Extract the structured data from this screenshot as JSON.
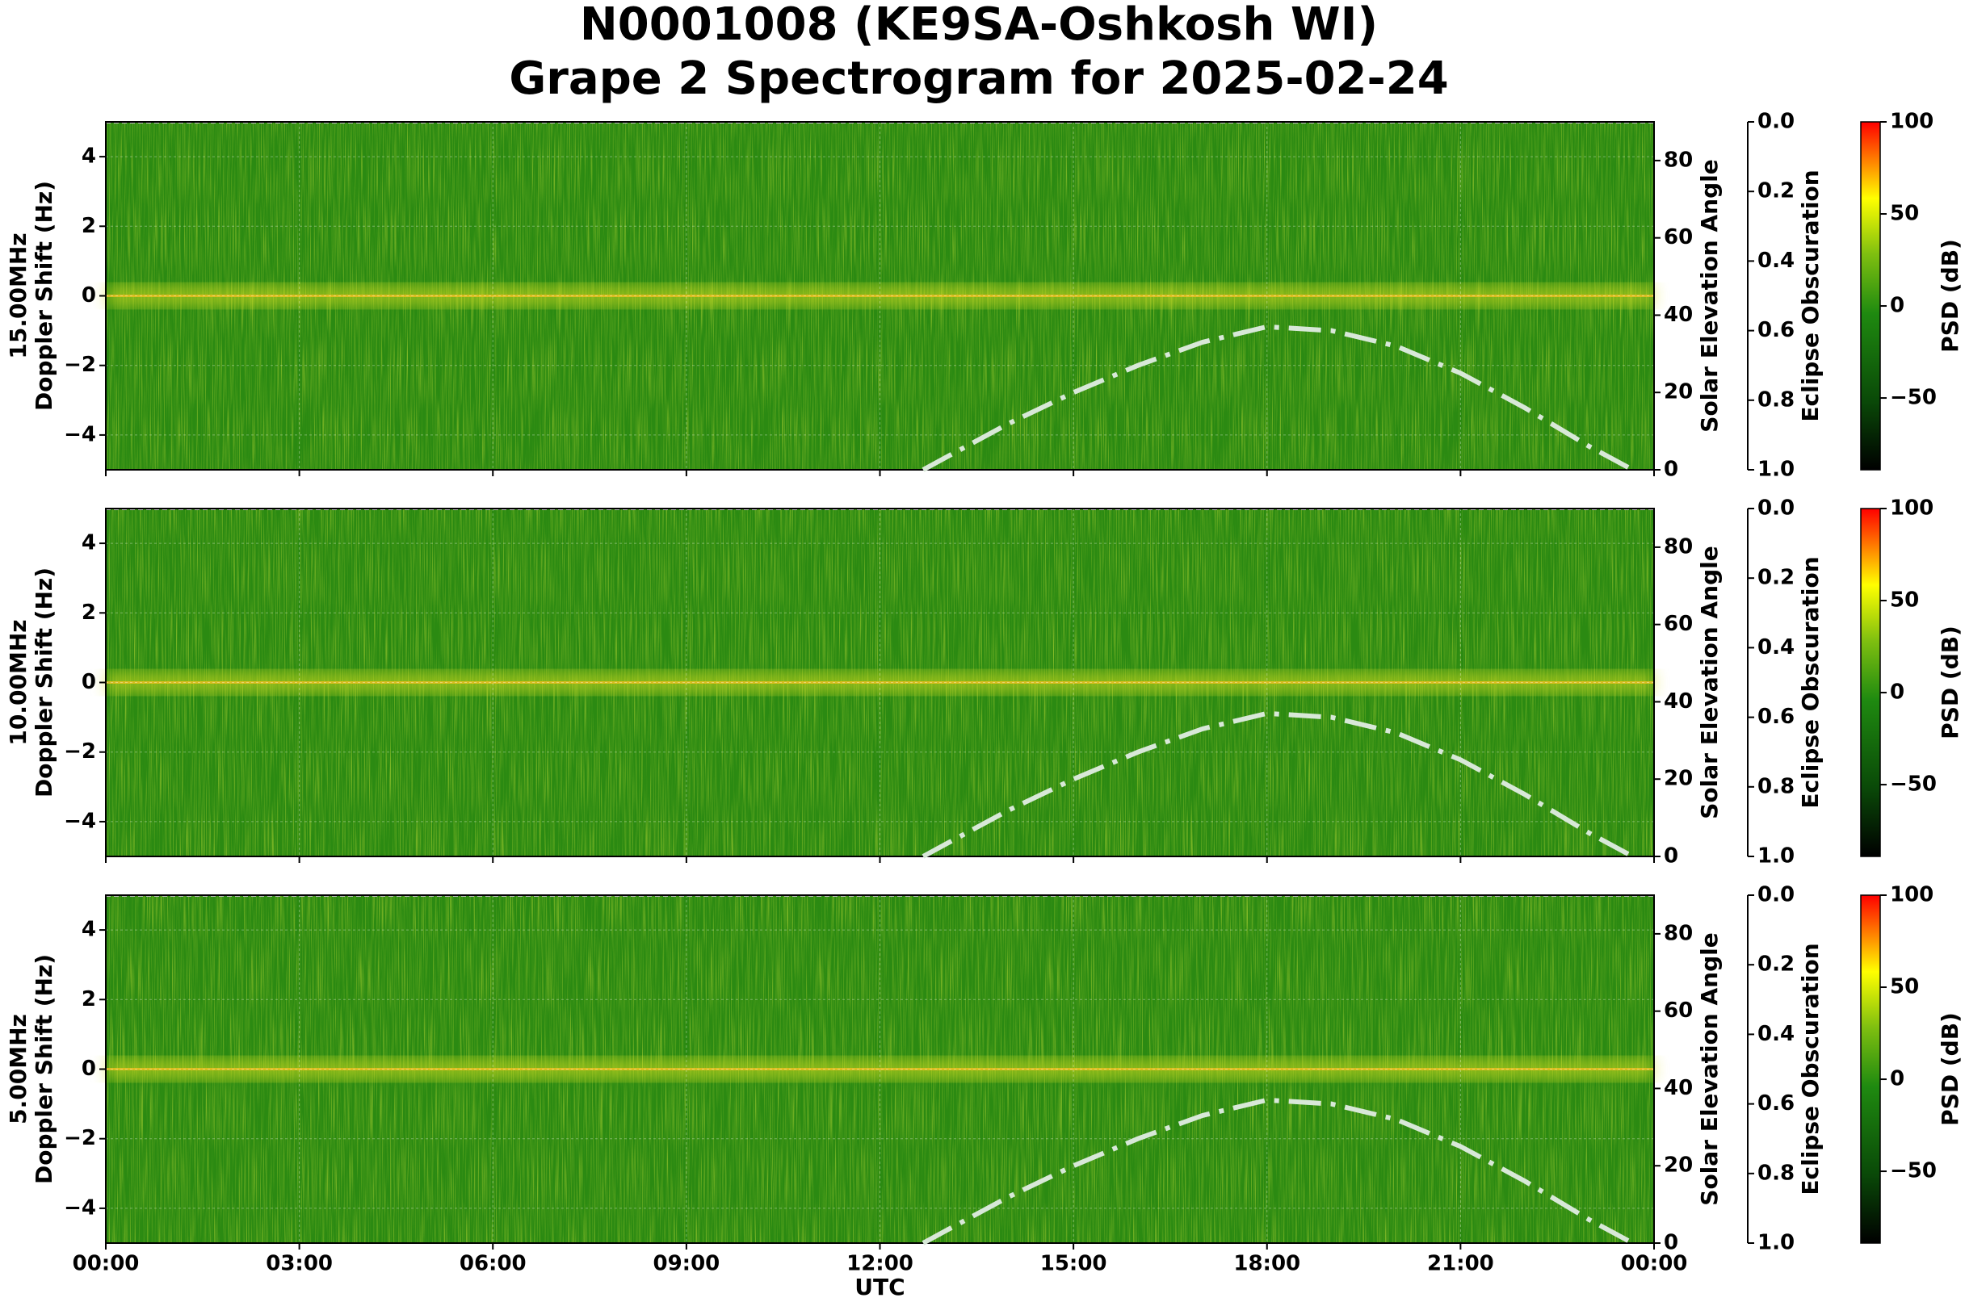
{
  "title": [
    "N0001008 (KE9SA-Oshkosh WI)",
    "Grape 2 Spectrogram for 2025-02-24"
  ],
  "x_axis": {
    "xlabel": "UTC",
    "xlim": [
      0,
      24
    ],
    "xticks": [
      {
        "value": 0,
        "label": "00:00"
      },
      {
        "value": 3,
        "label": "03:00"
      },
      {
        "value": 6,
        "label": "06:00"
      },
      {
        "value": 9,
        "label": "09:00"
      },
      {
        "value": 12,
        "label": "12:00"
      },
      {
        "value": 15,
        "label": "15:00"
      },
      {
        "value": 18,
        "label": "18:00"
      },
      {
        "value": 21,
        "label": "21:00"
      },
      {
        "value": 24,
        "label": "00:00"
      }
    ]
  },
  "chart_data": [
    {
      "type": "line",
      "ylabel": [
        "15.00MHz",
        "Doppler Shift (Hz)"
      ],
      "y2label": "Solar Elevation Angle",
      "y3label": "Eclipse Obscuration",
      "colorbar_label": "PSD (dB)",
      "ylim": [
        -5,
        5
      ],
      "yticks": [
        {
          "value": -4,
          "label": "−4"
        },
        {
          "value": -2,
          "label": "−2"
        },
        0,
        2,
        4
      ],
      "y2lim": [
        0,
        90
      ],
      "y2ticks": [
        0,
        20,
        40,
        60,
        80
      ],
      "y3lim": [
        1,
        0
      ],
      "y3ticks": [
        {
          "value": 0,
          "label": "0.0"
        },
        {
          "value": 0.2,
          "label": "0.2"
        },
        {
          "value": 0.4,
          "label": "0.4"
        },
        {
          "value": 0.6,
          "label": "0.6"
        },
        {
          "value": 0.8,
          "label": "0.8"
        },
        {
          "value": 1,
          "label": "1.0"
        }
      ],
      "clim": [
        -89,
        100
      ],
      "cticks": [
        {
          "value": -50,
          "label": "−50"
        },
        0,
        50,
        100
      ],
      "x": [
        12.67,
        13,
        14,
        15,
        16,
        17,
        18,
        19,
        20,
        21,
        22,
        23,
        23.67
      ],
      "values": [
        0,
        3,
        12,
        20,
        27,
        33,
        37,
        36,
        32,
        25,
        16,
        6,
        0
      ],
      "color": "#d8e8d8",
      "axis": "y2"
    },
    {
      "type": "line",
      "ylabel": [
        "10.00MHz",
        "Doppler Shift (Hz)"
      ],
      "y2label": "Solar Elevation Angle",
      "y3label": "Eclipse Obscuration",
      "colorbar_label": "PSD (dB)",
      "ylim": [
        -5,
        5
      ],
      "yticks": [
        {
          "value": -4,
          "label": "−4"
        },
        {
          "value": -2,
          "label": "−2"
        },
        0,
        2,
        4
      ],
      "y2lim": [
        0,
        90
      ],
      "y2ticks": [
        0,
        20,
        40,
        60,
        80
      ],
      "y3lim": [
        1,
        0
      ],
      "y3ticks": [
        {
          "value": 0,
          "label": "0.0"
        },
        {
          "value": 0.2,
          "label": "0.2"
        },
        {
          "value": 0.4,
          "label": "0.4"
        },
        {
          "value": 0.6,
          "label": "0.6"
        },
        {
          "value": 0.8,
          "label": "0.8"
        },
        {
          "value": 1,
          "label": "1.0"
        }
      ],
      "clim": [
        -89,
        100
      ],
      "cticks": [
        {
          "value": -50,
          "label": "−50"
        },
        0,
        50,
        100
      ],
      "x": [
        12.67,
        13,
        14,
        15,
        16,
        17,
        18,
        19,
        20,
        21,
        22,
        23,
        23.67
      ],
      "values": [
        0,
        3,
        12,
        20,
        27,
        33,
        37,
        36,
        32,
        25,
        16,
        6,
        0
      ],
      "color": "#d8e8d8",
      "axis": "y2"
    },
    {
      "type": "line",
      "ylabel": [
        "5.00MHz",
        "Doppler Shift (Hz)"
      ],
      "y2label": "Solar Elevation Angle",
      "y3label": "Eclipse Obscuration",
      "colorbar_label": "PSD (dB)",
      "ylim": [
        -5,
        5
      ],
      "yticks": [
        {
          "value": -4,
          "label": "−4"
        },
        {
          "value": -2,
          "label": "−2"
        },
        0,
        2,
        4
      ],
      "y2lim": [
        0,
        90
      ],
      "y2ticks": [
        0,
        20,
        40,
        60,
        80
      ],
      "y3lim": [
        1,
        0
      ],
      "y3ticks": [
        {
          "value": 0,
          "label": "0.0"
        },
        {
          "value": 0.2,
          "label": "0.2"
        },
        {
          "value": 0.4,
          "label": "0.4"
        },
        {
          "value": 0.6,
          "label": "0.6"
        },
        {
          "value": 0.8,
          "label": "0.8"
        },
        {
          "value": 1,
          "label": "1.0"
        }
      ],
      "clim": [
        -89,
        100
      ],
      "cticks": [
        {
          "value": -50,
          "label": "−50"
        },
        0,
        50,
        100
      ],
      "x": [
        12.67,
        13,
        14,
        15,
        16,
        17,
        18,
        19,
        20,
        21,
        22,
        23,
        23.67
      ],
      "values": [
        0,
        3,
        12,
        20,
        27,
        33,
        37,
        36,
        32,
        25,
        16,
        6,
        0
      ],
      "color": "#d8e8d8",
      "axis": "y2"
    }
  ]
}
